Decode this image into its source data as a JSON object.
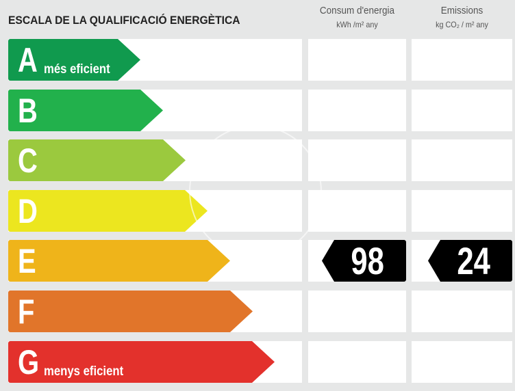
{
  "title": "ESCALA DE LA QUALIFICACIÓ ENERGÈTICA",
  "columns": {
    "consum": {
      "label": "Consum d'energia",
      "unit": "kWh /m² any"
    },
    "emissions": {
      "label": "Emissions",
      "unit": "kg CO₂ / m² any"
    }
  },
  "ratings": [
    {
      "letter": "A",
      "sub": "més eficient",
      "color": "#109a4e"
    },
    {
      "letter": "B",
      "sub": "",
      "color": "#22b14c"
    },
    {
      "letter": "C",
      "sub": "",
      "color": "#9bc93e"
    },
    {
      "letter": "D",
      "sub": "",
      "color": "#ece61f"
    },
    {
      "letter": "E",
      "sub": "",
      "color": "#efb41a"
    },
    {
      "letter": "F",
      "sub": "",
      "color": "#e1752a"
    },
    {
      "letter": "G",
      "sub": "menys eficient",
      "color": "#e3312c"
    }
  ],
  "result": {
    "rating": "E",
    "consum": "98",
    "emissions": "24"
  }
}
